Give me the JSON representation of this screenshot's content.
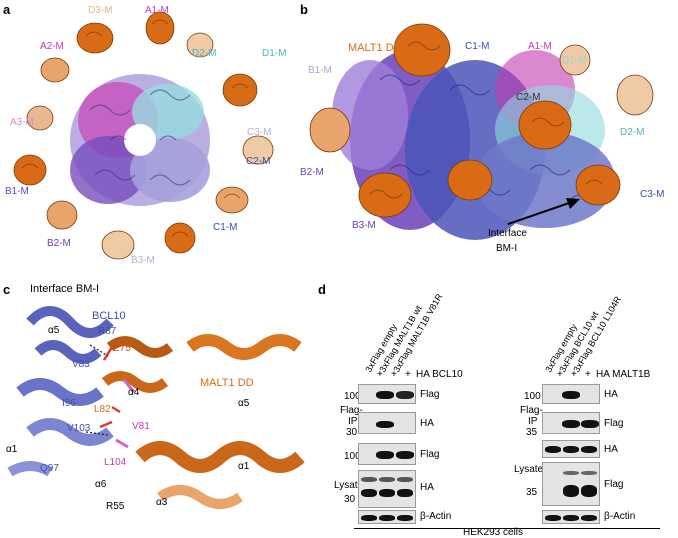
{
  "panels": {
    "a": "a",
    "b": "b",
    "c": "c",
    "d": "d"
  },
  "panel_a": {
    "labels": {
      "A1": "A1-M",
      "A2": "A2-M",
      "A3": "A3-M",
      "B1": "B1-M",
      "B2": "B2-M",
      "B3": "B3-M",
      "C1": "C1-M",
      "C2": "C2-M",
      "C3": "C3-M",
      "D1": "D1-M",
      "D2": "D2-M",
      "D3": "D3-M"
    },
    "colors": {
      "orange": "#d96b16",
      "magenta": "#c23bb3",
      "purple": "#6b3fb8",
      "lavender": "#9d99d9",
      "cyan": "#8fd8dc"
    }
  },
  "panel_b": {
    "labels": {
      "MALT1": "MALT1 DD",
      "C1": "C1-M",
      "A1": "A1-M",
      "D1": "D1-M",
      "B1": "B1-M",
      "C2": "C2-M",
      "D2": "D2-M",
      "B2": "B2-M",
      "C3": "C3-M",
      "B3": "B3-M",
      "interface": "Interface",
      "bmi": "BM-I"
    }
  },
  "panel_c": {
    "labels": {
      "interface": "Interface BM-I",
      "bcl10": "BCL10",
      "a5l": "α5",
      "r87": "R87",
      "e75": "E75",
      "v83": "V83",
      "i96": "I96",
      "l82": "L82",
      "a4": "α4",
      "malt1": "MALT1 DD",
      "a5r": "α5",
      "v81": "V81",
      "v103": "V103",
      "a1l": "α1",
      "q97": "Q97",
      "l104": "L104",
      "a6": "α6",
      "r55": "R55",
      "a3": "α3",
      "a1r": "α1"
    }
  },
  "panel_d": {
    "left": {
      "lanes": [
        "3xFlag empty",
        "3xFlag MALT1B wt",
        "3xFlag MALT1B V81R"
      ],
      "plus": [
        "+",
        "+",
        "+"
      ],
      "plus_label": "HA BCL10",
      "mw": {
        "ip100": "100",
        "ip30": "30",
        "wcl100": "100",
        "wcl30": "30"
      },
      "rows": {
        "flag1": "Flag",
        "ha1": "HA",
        "flag2": "Flag",
        "ha2": "HA",
        "actin": "β-Actin"
      }
    },
    "right": {
      "lanes": [
        "3xFlag empty",
        "3xFlag BCL10 wt",
        "3xFlag BCL10 L104R"
      ],
      "plus": [
        "+",
        "+",
        "+"
      ],
      "plus_label": "HA MALT1B",
      "mw": {
        "ip100": "100",
        "ip35": "35",
        "wcl35": "35"
      },
      "rows": {
        "ha1": "HA",
        "flag1": "Flag",
        "ha2": "HA",
        "flag2": "Flag",
        "actin": "β-Actin"
      }
    },
    "side": {
      "flagip": "Flag-",
      "ip": "IP",
      "lysate": "Lysate"
    },
    "footer": "HEK293 cells"
  }
}
